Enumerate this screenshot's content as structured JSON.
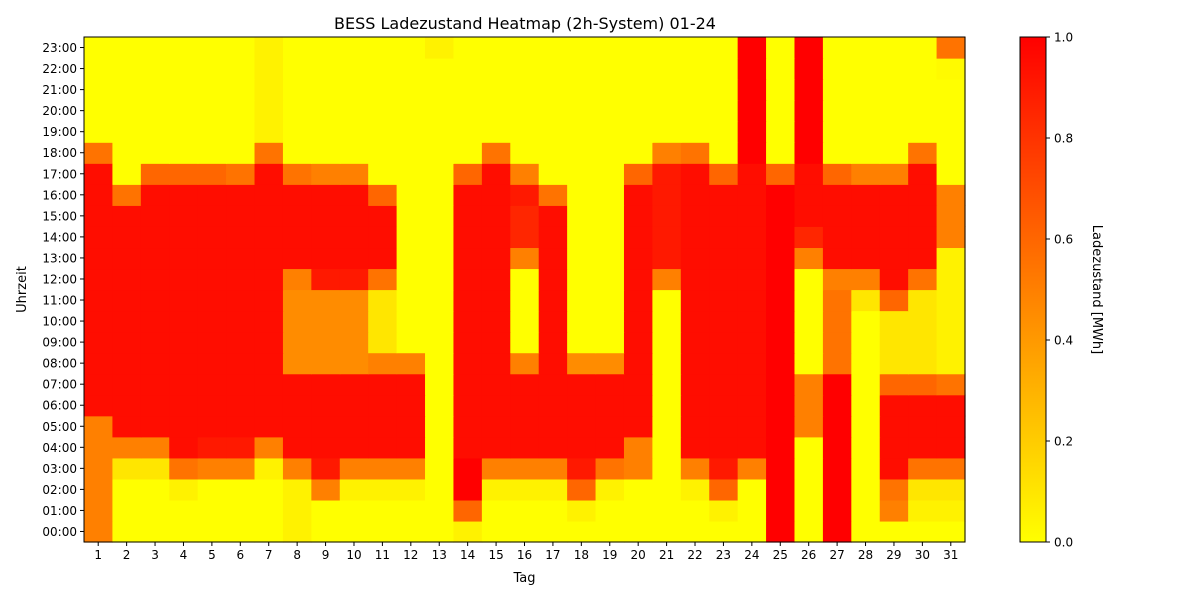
{
  "chart_data": {
    "type": "heatmap",
    "title": "BESS Ladezustand Heatmap (2h-System) 01-24",
    "xlabel": "Tag",
    "ylabel": "Uhrzeit",
    "colorbar_label": "Ladezustand [MWh]",
    "colorbar_ticks": [
      "0.0",
      "0.2",
      "0.4",
      "0.6",
      "0.8",
      "1.0"
    ],
    "vmin": 0.0,
    "vmax": 1.0,
    "colormap": [
      "#ffff00",
      "#ff0000"
    ],
    "days": [
      "1",
      "2",
      "3",
      "4",
      "5",
      "6",
      "7",
      "8",
      "9",
      "10",
      "11",
      "12",
      "13",
      "14",
      "15",
      "16",
      "17",
      "18",
      "19",
      "20",
      "21",
      "22",
      "23",
      "24",
      "25",
      "26",
      "27",
      "28",
      "29",
      "30",
      "31"
    ],
    "hours": [
      "00:00",
      "01:00",
      "02:00",
      "03:00",
      "04:00",
      "05:00",
      "06:00",
      "07:00",
      "08:00",
      "09:00",
      "10:00",
      "11:00",
      "12:00",
      "13:00",
      "14:00",
      "15:00",
      "16:00",
      "17:00",
      "18:00",
      "19:00",
      "20:00",
      "21:00",
      "22:00",
      "23:00"
    ],
    "values": [
      [
        0.5,
        0.0,
        0.0,
        0.0,
        0.0,
        0.0,
        0.0,
        0.05,
        0.0,
        0.0,
        0.0,
        0.0,
        0.0,
        0.05,
        0.0,
        0.0,
        0.0,
        0.0,
        0.0,
        0.0,
        0.0,
        0.0,
        0.0,
        0.0,
        1.0,
        0.0,
        1.0,
        0.0,
        0.0,
        0.0,
        0.0
      ],
      [
        0.5,
        0.0,
        0.0,
        0.0,
        0.0,
        0.0,
        0.0,
        0.05,
        0.0,
        0.0,
        0.0,
        0.0,
        0.0,
        0.6,
        0.0,
        0.0,
        0.0,
        0.05,
        0.0,
        0.0,
        0.0,
        0.0,
        0.05,
        0.0,
        1.0,
        0.0,
        1.0,
        0.0,
        0.5,
        0.05,
        0.05
      ],
      [
        0.5,
        0.0,
        0.0,
        0.05,
        0.0,
        0.0,
        0.0,
        0.05,
        0.5,
        0.05,
        0.05,
        0.05,
        0.0,
        1.0,
        0.05,
        0.05,
        0.05,
        0.6,
        0.05,
        0.0,
        0.0,
        0.05,
        0.6,
        0.0,
        1.0,
        0.0,
        1.0,
        0.0,
        0.55,
        0.1,
        0.1
      ],
      [
        0.5,
        0.1,
        0.1,
        0.55,
        0.5,
        0.5,
        0.05,
        0.5,
        0.9,
        0.5,
        0.5,
        0.5,
        0.0,
        1.0,
        0.5,
        0.5,
        0.5,
        0.9,
        0.55,
        0.5,
        0.0,
        0.5,
        0.9,
        0.5,
        1.0,
        0.0,
        1.0,
        0.0,
        0.95,
        0.55,
        0.55
      ],
      [
        0.5,
        0.5,
        0.5,
        0.95,
        0.9,
        0.9,
        0.5,
        0.95,
        0.95,
        0.95,
        0.95,
        0.95,
        0.0,
        0.95,
        0.95,
        0.95,
        0.95,
        0.95,
        0.95,
        0.5,
        0.0,
        0.95,
        0.95,
        0.95,
        1.0,
        0.0,
        1.0,
        0.0,
        0.95,
        0.95,
        0.95
      ],
      [
        0.5,
        0.95,
        0.95,
        0.95,
        0.95,
        0.95,
        0.95,
        0.95,
        0.95,
        0.95,
        0.95,
        0.95,
        0.0,
        0.95,
        0.95,
        0.95,
        0.95,
        0.95,
        0.95,
        0.95,
        0.0,
        0.95,
        0.95,
        0.95,
        1.0,
        0.5,
        1.0,
        0.0,
        0.95,
        0.95,
        0.95
      ],
      [
        0.95,
        0.95,
        0.95,
        0.95,
        0.95,
        0.95,
        0.95,
        0.95,
        0.95,
        0.95,
        0.95,
        0.95,
        0.0,
        0.95,
        0.95,
        0.95,
        0.95,
        0.95,
        0.95,
        0.95,
        0.0,
        0.95,
        0.95,
        0.95,
        1.0,
        0.5,
        1.0,
        0.0,
        0.95,
        0.95,
        0.95
      ],
      [
        0.95,
        0.95,
        0.95,
        0.95,
        0.95,
        0.95,
        0.95,
        0.95,
        0.95,
        0.95,
        0.95,
        0.95,
        0.0,
        0.95,
        0.95,
        0.95,
        0.95,
        0.95,
        0.95,
        0.95,
        0.0,
        0.95,
        0.95,
        0.95,
        1.0,
        0.5,
        1.0,
        0.0,
        0.6,
        0.6,
        0.55
      ],
      [
        0.95,
        0.95,
        0.95,
        0.95,
        0.95,
        0.95,
        0.95,
        0.45,
        0.45,
        0.45,
        0.5,
        0.5,
        0.0,
        0.95,
        0.95,
        0.5,
        0.95,
        0.45,
        0.45,
        0.95,
        0.0,
        0.95,
        0.95,
        0.95,
        1.0,
        0.0,
        0.55,
        0.0,
        0.1,
        0.1,
        0.05
      ],
      [
        0.95,
        0.95,
        0.95,
        0.95,
        0.95,
        0.95,
        0.95,
        0.45,
        0.45,
        0.45,
        0.1,
        0.0,
        0.0,
        0.95,
        0.95,
        0.0,
        0.95,
        0.0,
        0.0,
        0.95,
        0.0,
        0.95,
        0.95,
        0.95,
        1.0,
        0.0,
        0.55,
        0.0,
        0.1,
        0.1,
        0.05
      ],
      [
        0.95,
        0.95,
        0.95,
        0.95,
        0.95,
        0.95,
        0.95,
        0.45,
        0.45,
        0.45,
        0.1,
        0.0,
        0.0,
        0.95,
        0.95,
        0.0,
        0.95,
        0.0,
        0.0,
        0.95,
        0.0,
        0.95,
        0.95,
        0.95,
        1.0,
        0.0,
        0.55,
        0.0,
        0.1,
        0.1,
        0.05
      ],
      [
        0.95,
        0.95,
        0.95,
        0.95,
        0.95,
        0.95,
        0.95,
        0.45,
        0.45,
        0.45,
        0.1,
        0.0,
        0.0,
        0.95,
        0.95,
        0.0,
        0.95,
        0.0,
        0.0,
        0.95,
        0.0,
        0.95,
        0.95,
        0.95,
        1.0,
        0.0,
        0.55,
        0.1,
        0.6,
        0.1,
        0.05
      ],
      [
        0.95,
        0.95,
        0.95,
        0.95,
        0.95,
        0.95,
        0.95,
        0.5,
        0.9,
        0.9,
        0.55,
        0.0,
        0.0,
        0.95,
        0.95,
        0.0,
        0.95,
        0.0,
        0.0,
        0.95,
        0.5,
        0.95,
        0.95,
        0.95,
        1.0,
        0.0,
        0.5,
        0.5,
        0.95,
        0.55,
        0.05
      ],
      [
        0.95,
        0.95,
        0.95,
        0.95,
        0.95,
        0.95,
        0.95,
        0.95,
        0.95,
        0.95,
        0.95,
        0.0,
        0.0,
        0.95,
        0.95,
        0.5,
        0.95,
        0.0,
        0.0,
        0.95,
        0.9,
        0.95,
        0.95,
        0.95,
        1.0,
        0.5,
        0.95,
        0.95,
        0.95,
        0.95,
        0.05
      ],
      [
        0.95,
        0.95,
        0.95,
        0.95,
        0.95,
        0.95,
        0.95,
        0.95,
        0.95,
        0.95,
        0.95,
        0.0,
        0.0,
        0.95,
        0.95,
        0.85,
        0.95,
        0.0,
        0.0,
        0.95,
        0.9,
        0.95,
        0.95,
        0.95,
        1.0,
        0.85,
        0.95,
        0.95,
        0.95,
        0.95,
        0.5
      ],
      [
        0.95,
        0.95,
        0.95,
        0.95,
        0.95,
        0.95,
        0.95,
        0.95,
        0.95,
        0.95,
        0.95,
        0.0,
        0.0,
        0.95,
        0.95,
        0.85,
        0.95,
        0.0,
        0.0,
        0.95,
        0.9,
        0.95,
        0.95,
        0.95,
        1.0,
        0.95,
        0.95,
        0.95,
        0.95,
        0.95,
        0.5
      ],
      [
        0.95,
        0.55,
        0.95,
        0.95,
        0.95,
        0.95,
        0.95,
        0.95,
        0.95,
        0.95,
        0.6,
        0.0,
        0.0,
        0.95,
        0.95,
        0.9,
        0.55,
        0.0,
        0.0,
        0.95,
        0.9,
        0.95,
        0.95,
        0.95,
        1.0,
        0.95,
        0.95,
        0.95,
        0.95,
        0.95,
        0.5
      ],
      [
        0.95,
        0.0,
        0.6,
        0.6,
        0.6,
        0.55,
        0.95,
        0.55,
        0.5,
        0.5,
        0.0,
        0.0,
        0.0,
        0.6,
        0.95,
        0.5,
        0.0,
        0.0,
        0.0,
        0.6,
        0.9,
        0.95,
        0.6,
        0.95,
        0.6,
        0.95,
        0.6,
        0.5,
        0.5,
        0.95,
        0.0
      ],
      [
        0.55,
        0.0,
        0.0,
        0.0,
        0.0,
        0.0,
        0.55,
        0.0,
        0.0,
        0.0,
        0.0,
        0.0,
        0.0,
        0.0,
        0.55,
        0.0,
        0.0,
        0.0,
        0.0,
        0.0,
        0.5,
        0.55,
        0.0,
        1.0,
        0.0,
        1.0,
        0.0,
        0.0,
        0.0,
        0.55,
        0.0
      ],
      [
        0.0,
        0.0,
        0.0,
        0.0,
        0.0,
        0.0,
        0.05,
        0.0,
        0.0,
        0.0,
        0.0,
        0.0,
        0.0,
        0.0,
        0.0,
        0.0,
        0.0,
        0.0,
        0.0,
        0.0,
        0.0,
        0.0,
        0.0,
        1.0,
        0.0,
        1.0,
        0.0,
        0.0,
        0.0,
        0.0,
        0.0
      ],
      [
        0.0,
        0.0,
        0.0,
        0.0,
        0.0,
        0.0,
        0.05,
        0.0,
        0.0,
        0.0,
        0.0,
        0.0,
        0.0,
        0.0,
        0.0,
        0.0,
        0.0,
        0.0,
        0.0,
        0.0,
        0.0,
        0.0,
        0.0,
        1.0,
        0.0,
        1.0,
        0.0,
        0.0,
        0.0,
        0.0,
        0.0
      ],
      [
        0.0,
        0.0,
        0.0,
        0.0,
        0.0,
        0.0,
        0.05,
        0.0,
        0.0,
        0.0,
        0.0,
        0.0,
        0.0,
        0.0,
        0.0,
        0.0,
        0.0,
        0.0,
        0.0,
        0.0,
        0.0,
        0.0,
        0.0,
        1.0,
        0.0,
        1.0,
        0.0,
        0.0,
        0.0,
        0.0,
        0.0
      ],
      [
        0.0,
        0.0,
        0.0,
        0.0,
        0.0,
        0.0,
        0.05,
        0.0,
        0.0,
        0.0,
        0.0,
        0.0,
        0.0,
        0.0,
        0.0,
        0.0,
        0.0,
        0.0,
        0.0,
        0.0,
        0.0,
        0.0,
        0.0,
        1.0,
        0.0,
        1.0,
        0.0,
        0.0,
        0.0,
        0.0,
        0.02
      ],
      [
        0.0,
        0.0,
        0.0,
        0.0,
        0.0,
        0.0,
        0.05,
        0.0,
        0.0,
        0.0,
        0.0,
        0.0,
        0.05,
        0.0,
        0.0,
        0.0,
        0.0,
        0.0,
        0.0,
        0.0,
        0.0,
        0.0,
        0.0,
        1.0,
        0.0,
        1.0,
        0.0,
        0.0,
        0.0,
        0.0,
        0.55
      ]
    ]
  }
}
